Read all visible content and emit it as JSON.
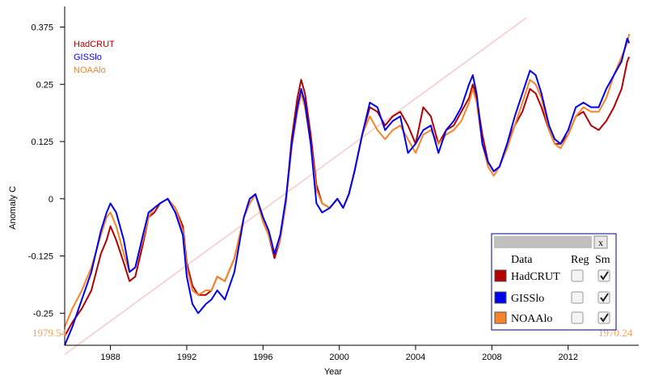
{
  "colors": {
    "hadcrut": "#b30000",
    "gisslo": "#0000ee",
    "noaalo": "#f5842a",
    "trend": "#f7c9c9",
    "panel_border": "#00008b",
    "panel_header": "#c0c0c0"
  },
  "chart_data": {
    "type": "line",
    "title": "",
    "xlabel": "Year",
    "ylabel": "Anomaly C",
    "xlim": [
      1985.6,
      2015.7
    ],
    "ylim": [
      -0.32,
      0.42
    ],
    "x_ticks": [
      1988,
      1992,
      1996,
      2000,
      2004,
      2008,
      2012
    ],
    "y_ticks": [
      -0.25,
      -0.125,
      0,
      0.125,
      0.25,
      0.375
    ],
    "y_tick_labels": [
      "-0.25",
      "-0.125",
      "0",
      "0.125",
      "0.25",
      "0.375"
    ],
    "legend_position": "top-left",
    "grid": false,
    "corner_labels": {
      "left": "1979.54",
      "right": "1970.24"
    },
    "trend_line": {
      "x": [
        1985.6,
        2009.8
      ],
      "y": [
        -0.34,
        0.395
      ]
    },
    "series": [
      {
        "name": "HadCRUT",
        "color_key": "hadcrut",
        "x": [
          1985.6,
          1986.0,
          1986.5,
          1987.0,
          1987.5,
          1987.8,
          1988.0,
          1988.3,
          1988.7,
          1989.0,
          1989.3,
          1989.7,
          1990.0,
          1990.3,
          1990.6,
          1991.0,
          1991.4,
          1991.8,
          1992.0,
          1992.3,
          1992.6,
          1993.0,
          1993.3,
          1993.6,
          1994.0,
          1994.5,
          1995.0,
          1995.3,
          1995.6,
          1996.0,
          1996.3,
          1996.6,
          1996.9,
          1997.2,
          1997.5,
          1997.8,
          1998.0,
          1998.2,
          1998.5,
          1998.8,
          1999.1,
          1999.5,
          1999.9,
          2000.2,
          2000.5,
          2000.8,
          2001.2,
          2001.6,
          2002.0,
          2002.4,
          2002.8,
          2003.2,
          2003.6,
          2004.0,
          2004.4,
          2004.8,
          2005.2,
          2005.6,
          2006.0,
          2006.4,
          2006.8,
          2007.0,
          2007.2,
          2007.5,
          2007.8,
          2008.1,
          2008.4,
          2008.8,
          2009.2,
          2009.6,
          2010.0,
          2010.3,
          2010.6,
          2011.0,
          2011.3,
          2011.6,
          2012.0,
          2012.4,
          2012.8,
          2013.2,
          2013.6,
          2014.0,
          2014.4,
          2014.8,
          2015.1,
          2015.2
        ],
        "y": [
          -0.3,
          -0.27,
          -0.24,
          -0.2,
          -0.12,
          -0.09,
          -0.06,
          -0.09,
          -0.14,
          -0.18,
          -0.17,
          -0.1,
          -0.04,
          -0.03,
          -0.01,
          0.0,
          -0.02,
          -0.06,
          -0.14,
          -0.19,
          -0.21,
          -0.21,
          -0.2,
          -0.17,
          -0.18,
          -0.13,
          -0.04,
          -0.01,
          0.01,
          -0.05,
          -0.08,
          -0.13,
          -0.09,
          -0.01,
          0.13,
          0.22,
          0.26,
          0.23,
          0.14,
          0.03,
          -0.01,
          -0.02,
          0.0,
          -0.02,
          0.01,
          0.06,
          0.14,
          0.2,
          0.19,
          0.16,
          0.18,
          0.19,
          0.16,
          0.12,
          0.2,
          0.18,
          0.12,
          0.15,
          0.16,
          0.19,
          0.22,
          0.25,
          0.22,
          0.14,
          0.08,
          0.06,
          0.07,
          0.12,
          0.16,
          0.19,
          0.24,
          0.23,
          0.2,
          0.15,
          0.12,
          0.12,
          0.14,
          0.18,
          0.19,
          0.16,
          0.15,
          0.17,
          0.2,
          0.24,
          0.3,
          0.31
        ]
      },
      {
        "name": "GISSlo",
        "color_key": "gisslo",
        "x": [
          1985.6,
          1986.0,
          1986.5,
          1987.0,
          1987.5,
          1987.8,
          1988.0,
          1988.3,
          1988.7,
          1989.0,
          1989.3,
          1989.7,
          1990.0,
          1990.3,
          1990.6,
          1991.0,
          1991.4,
          1991.8,
          1992.0,
          1992.3,
          1992.6,
          1993.0,
          1993.3,
          1993.6,
          1994.0,
          1994.5,
          1995.0,
          1995.3,
          1995.6,
          1996.0,
          1996.3,
          1996.6,
          1996.9,
          1997.2,
          1997.5,
          1997.8,
          1998.0,
          1998.2,
          1998.5,
          1998.8,
          1999.1,
          1999.5,
          1999.9,
          2000.2,
          2000.5,
          2000.8,
          2001.2,
          2001.6,
          2002.0,
          2002.4,
          2002.8,
          2003.2,
          2003.6,
          2004.0,
          2004.4,
          2004.8,
          2005.2,
          2005.6,
          2006.0,
          2006.4,
          2006.8,
          2007.0,
          2007.2,
          2007.5,
          2007.8,
          2008.1,
          2008.4,
          2008.8,
          2009.2,
          2009.6,
          2010.0,
          2010.3,
          2010.6,
          2011.0,
          2011.3,
          2011.6,
          2012.0,
          2012.4,
          2012.8,
          2013.2,
          2013.6,
          2014.0,
          2014.4,
          2014.8,
          2015.1,
          2015.2
        ],
        "y": [
          -0.32,
          -0.28,
          -0.22,
          -0.16,
          -0.07,
          -0.03,
          -0.01,
          -0.03,
          -0.09,
          -0.16,
          -0.15,
          -0.08,
          -0.03,
          -0.02,
          -0.01,
          0.0,
          -0.03,
          -0.08,
          -0.17,
          -0.23,
          -0.25,
          -0.23,
          -0.22,
          -0.2,
          -0.22,
          -0.16,
          -0.04,
          0.0,
          0.01,
          -0.04,
          -0.07,
          -0.12,
          -0.08,
          0.0,
          0.12,
          0.2,
          0.24,
          0.21,
          0.12,
          -0.01,
          -0.03,
          -0.02,
          0.0,
          -0.02,
          0.01,
          0.06,
          0.14,
          0.21,
          0.2,
          0.15,
          0.17,
          0.18,
          0.1,
          0.12,
          0.15,
          0.16,
          0.1,
          0.15,
          0.17,
          0.2,
          0.25,
          0.27,
          0.23,
          0.12,
          0.08,
          0.06,
          0.07,
          0.12,
          0.18,
          0.23,
          0.28,
          0.27,
          0.23,
          0.16,
          0.13,
          0.12,
          0.15,
          0.2,
          0.21,
          0.2,
          0.2,
          0.24,
          0.27,
          0.3,
          0.35,
          0.34
        ]
      },
      {
        "name": "NOAAlo",
        "color_key": "noaalo",
        "x": [
          1985.6,
          1986.0,
          1986.5,
          1987.0,
          1987.5,
          1987.8,
          1988.0,
          1988.3,
          1988.7,
          1989.0,
          1989.3,
          1989.7,
          1990.0,
          1990.3,
          1990.6,
          1991.0,
          1991.4,
          1991.8,
          1992.0,
          1992.3,
          1992.6,
          1993.0,
          1993.3,
          1993.6,
          1994.0,
          1994.5,
          1995.0,
          1995.3,
          1995.6,
          1996.0,
          1996.3,
          1996.6,
          1996.9,
          1997.2,
          1997.5,
          1997.8,
          1998.0,
          1998.2,
          1998.5,
          1998.8,
          1999.1,
          1999.5,
          1999.9,
          2000.2,
          2000.5,
          2000.8,
          2001.2,
          2001.6,
          2002.0,
          2002.4,
          2002.8,
          2003.2,
          2003.6,
          2004.0,
          2004.4,
          2004.8,
          2005.2,
          2005.6,
          2006.0,
          2006.4,
          2006.8,
          2007.0,
          2007.2,
          2007.5,
          2007.8,
          2008.1,
          2008.4,
          2008.8,
          2009.2,
          2009.6,
          2010.0,
          2010.3,
          2010.6,
          2011.0,
          2011.3,
          2011.6,
          2012.0,
          2012.4,
          2012.8,
          2013.2,
          2013.6,
          2014.0,
          2014.4,
          2014.8,
          2015.1,
          2015.2
        ],
        "y": [
          -0.28,
          -0.24,
          -0.2,
          -0.15,
          -0.08,
          -0.04,
          -0.03,
          -0.06,
          -0.12,
          -0.16,
          -0.15,
          -0.09,
          -0.04,
          -0.02,
          -0.01,
          0.0,
          -0.02,
          -0.07,
          -0.15,
          -0.2,
          -0.21,
          -0.2,
          -0.2,
          -0.17,
          -0.18,
          -0.13,
          -0.04,
          -0.01,
          0.01,
          -0.05,
          -0.08,
          -0.12,
          -0.09,
          -0.01,
          0.11,
          0.19,
          0.23,
          0.2,
          0.12,
          0.02,
          -0.01,
          -0.02,
          0.0,
          -0.02,
          0.01,
          0.06,
          0.14,
          0.18,
          0.15,
          0.13,
          0.15,
          0.16,
          0.13,
          0.1,
          0.14,
          0.15,
          0.12,
          0.14,
          0.15,
          0.17,
          0.21,
          0.24,
          0.21,
          0.12,
          0.07,
          0.05,
          0.07,
          0.11,
          0.16,
          0.21,
          0.26,
          0.25,
          0.22,
          0.15,
          0.12,
          0.11,
          0.14,
          0.18,
          0.2,
          0.19,
          0.19,
          0.22,
          0.27,
          0.31,
          0.34,
          0.36
        ]
      }
    ]
  },
  "control_panel": {
    "close_label": "x",
    "col_data": "Data",
    "col_reg": "Reg",
    "col_sm": "Sm",
    "rows": [
      {
        "label": "HadCRUT",
        "color_key": "hadcrut",
        "reg": false,
        "sm": true
      },
      {
        "label": "GISSlo",
        "color_key": "gisslo",
        "reg": false,
        "sm": true
      },
      {
        "label": "NOAAlo",
        "color_key": "noaalo",
        "reg": false,
        "sm": true
      }
    ]
  }
}
